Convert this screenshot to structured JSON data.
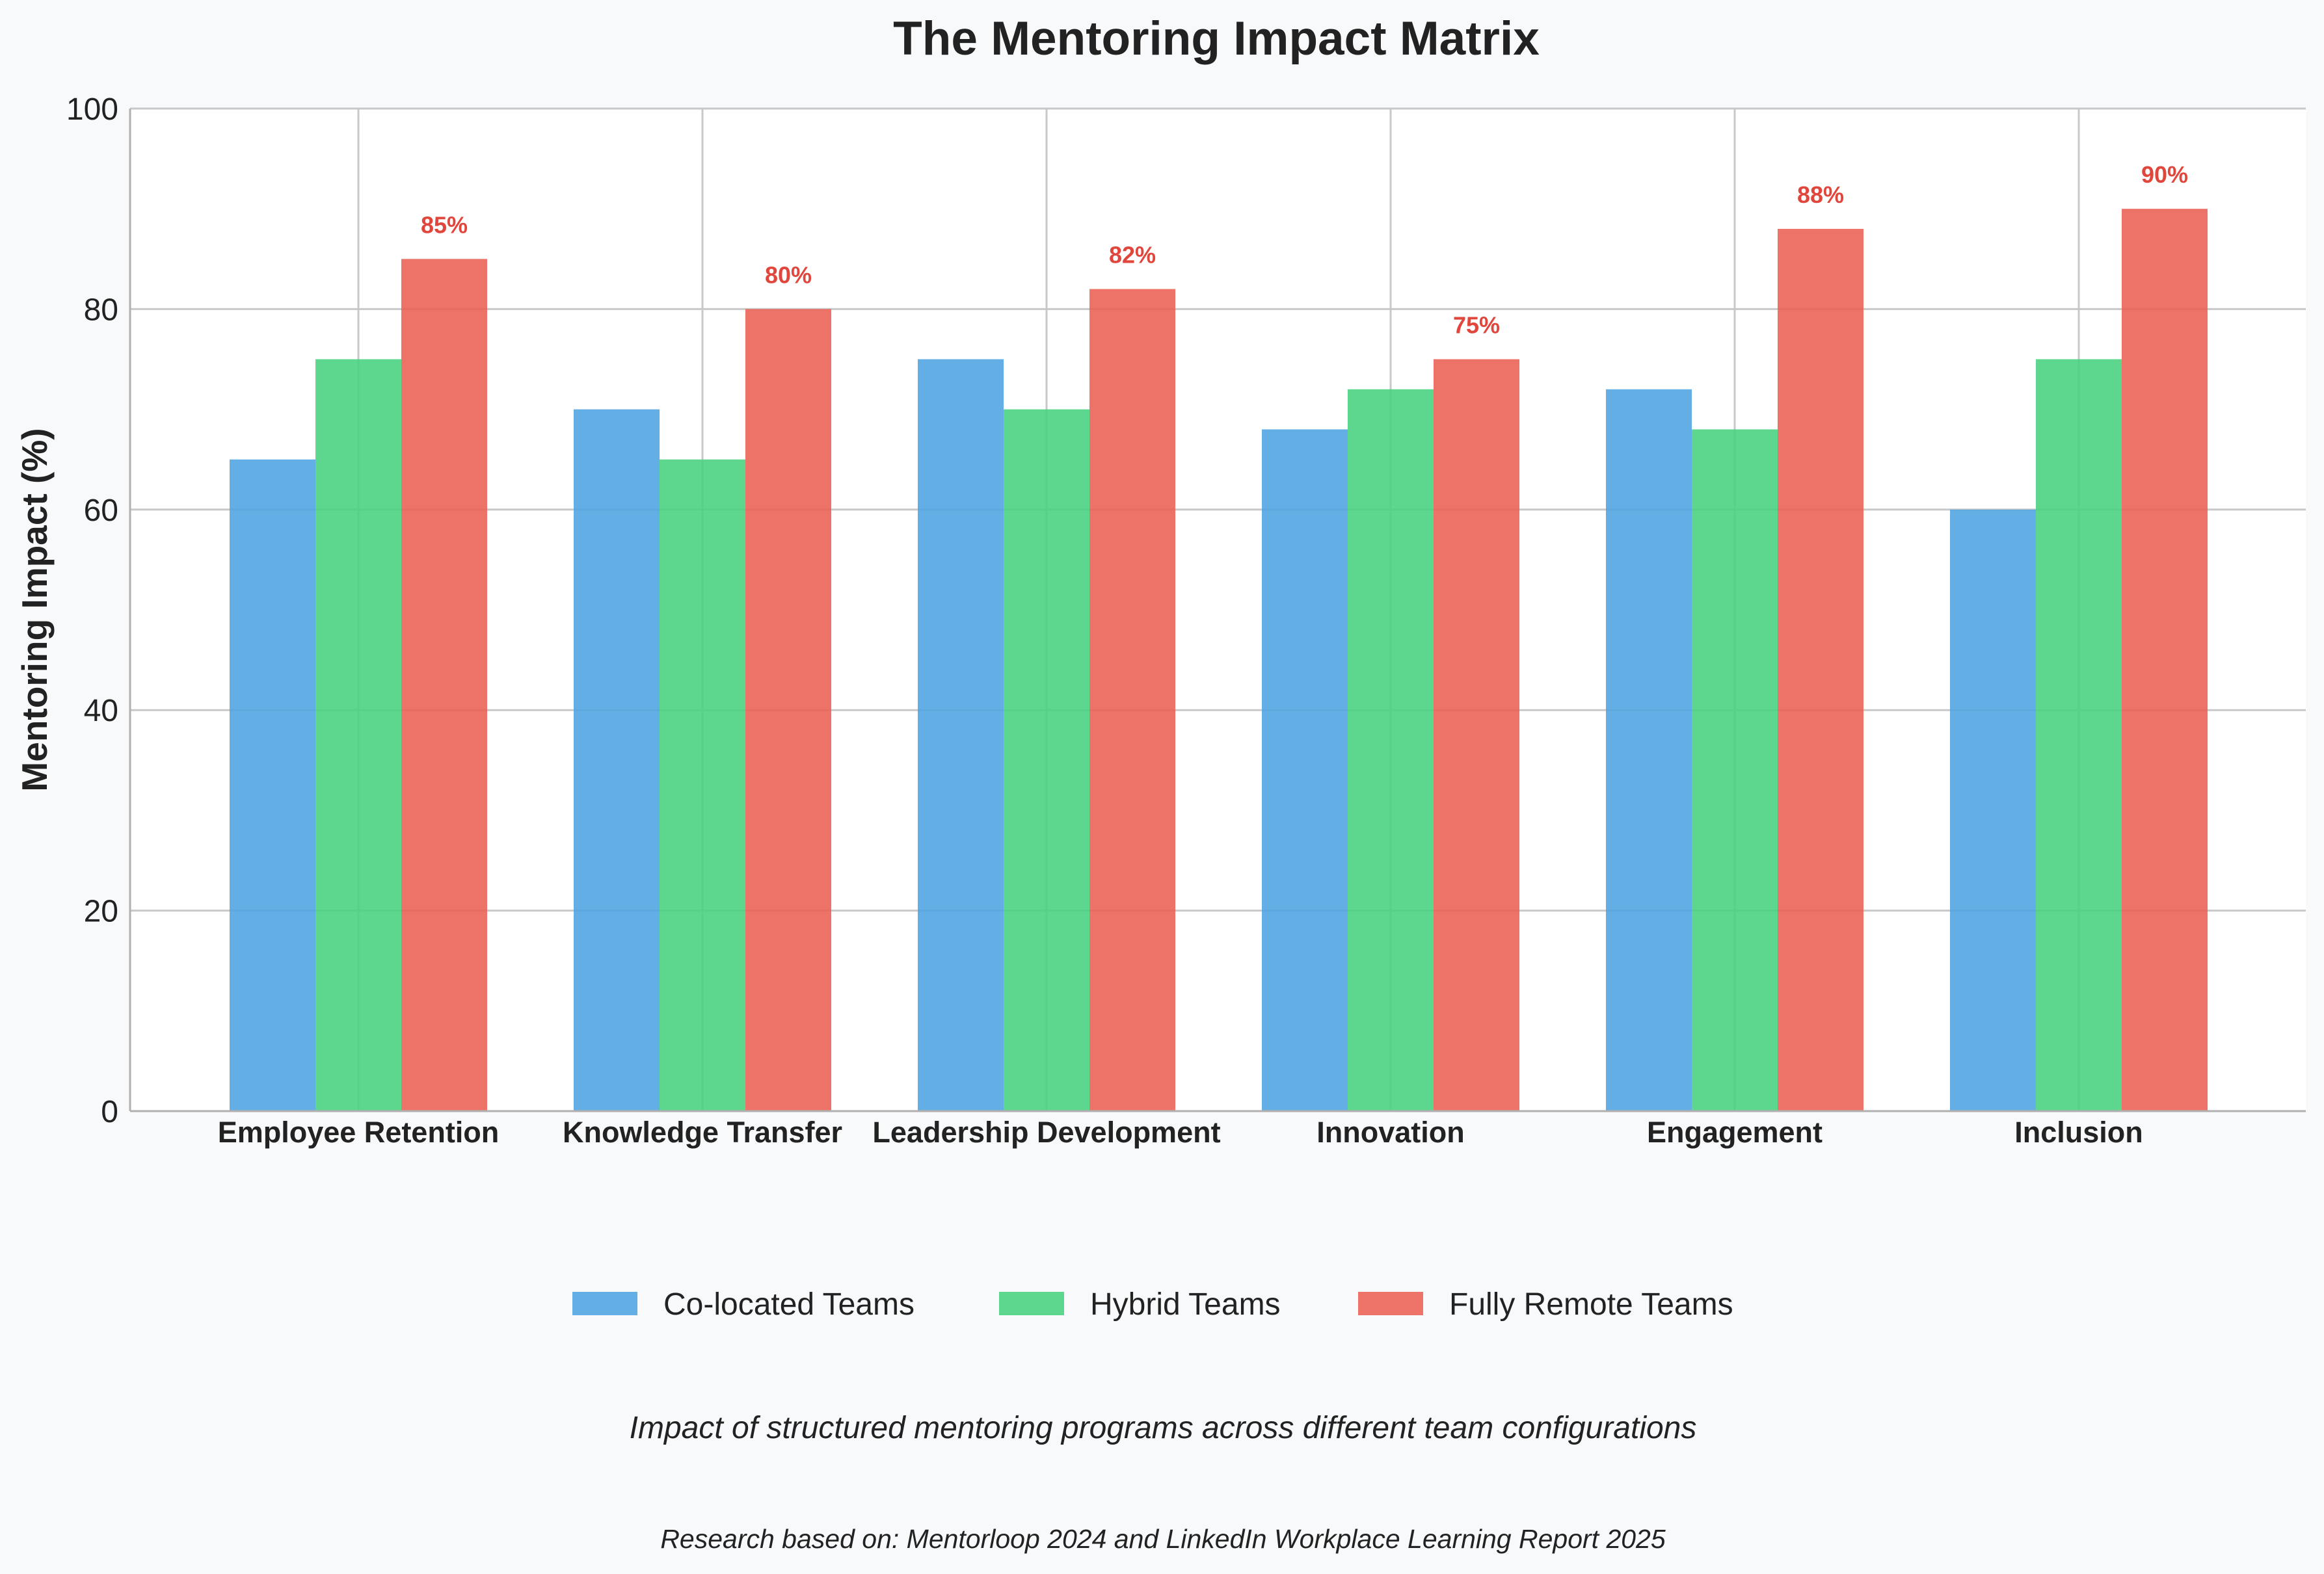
{
  "chart_data": {
    "type": "bar",
    "title": "The Mentoring Impact Matrix",
    "xlabel": "",
    "ylabel": "Mentoring Impact (%)",
    "ylim": [
      0,
      100
    ],
    "yticks": [
      "0",
      "20",
      "40",
      "60",
      "80",
      "100"
    ],
    "categories": [
      "Employee Retention",
      "Knowledge Transfer",
      "Leadership Development",
      "Innovation",
      "Engagement",
      "Inclusion"
    ],
    "series": [
      {
        "name": "Co-located Teams",
        "color": "#4da3e0",
        "values": [
          65,
          70,
          75,
          68,
          72,
          60
        ]
      },
      {
        "name": "Hybrid Teams",
        "color": "#47d17e",
        "values": [
          75,
          65,
          70,
          72,
          68,
          75
        ]
      },
      {
        "name": "Fully Remote Teams",
        "color": "#ea5e52",
        "values": [
          85,
          80,
          82,
          75,
          88,
          90
        ]
      }
    ],
    "data_labels": {
      "series": "Fully Remote Teams",
      "color": "#e0463b",
      "labels": [
        "85%",
        "80%",
        "82%",
        "75%",
        "88%",
        "90%"
      ]
    },
    "grid": true,
    "legend_position": "bottom-center",
    "subtitle": "Impact of structured mentoring programs across different team configurations",
    "source": "Research based on: Mentorloop 2024 and LinkedIn Workplace Learning Report 2025"
  }
}
